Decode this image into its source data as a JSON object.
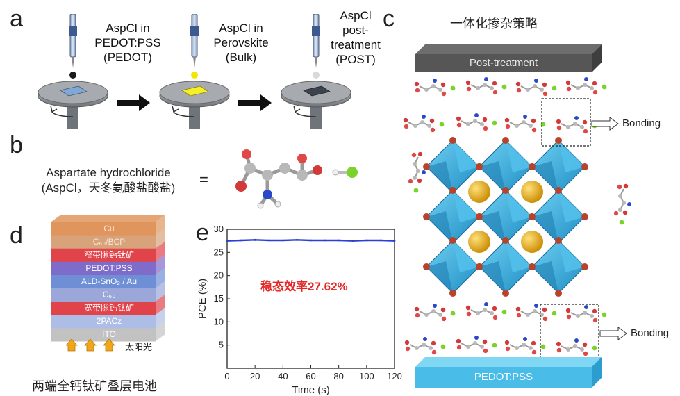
{
  "panels": {
    "a": "a",
    "b": "b",
    "c": "c",
    "d": "d",
    "e": "e"
  },
  "panel_a": {
    "steps": [
      {
        "lines": [
          "AspCl in",
          "PEDOT:PSS",
          "(PEDOT)"
        ],
        "drop_color": "#1a1a1a",
        "film_color": "#7fa8d8"
      },
      {
        "lines": [
          "AspCl in",
          "Perovskite",
          "(Bulk)"
        ],
        "drop_color": "#f2e600",
        "film_color": "#f5ef2a"
      },
      {
        "lines": [
          "AspCl",
          "post-",
          "treatment",
          "(POST)"
        ],
        "drop_color": "#d9d9d9",
        "film_color": "#3c4350"
      }
    ]
  },
  "panel_b": {
    "name_line1": "Aspartate hydrochloride",
    "name_line2": "(AspCl，天冬氨酸盐酸盐)",
    "equals": "="
  },
  "panel_c": {
    "title": "一体化掺杂策略",
    "top_bar": "Post-treatment",
    "bottom_bar": "PEDOT:PSS",
    "bonding_label": "Bonding"
  },
  "panel_d": {
    "layers": [
      {
        "label": "Cu",
        "color": "#e0955d"
      },
      {
        "label": "C₆₀/BCP",
        "color": "#d8a37a"
      },
      {
        "label": "窄带隙钙钛矿",
        "color": "#e1434b"
      },
      {
        "label": "PEDOT:PSS",
        "color": "#7f6bc9"
      },
      {
        "label": "ALD-SnO₂ / Au",
        "color": "#6e8fd6"
      },
      {
        "label": "C₆₀",
        "color": "#9aa7d8"
      },
      {
        "label": "宽带隙钙钛矿",
        "color": "#e1434b"
      },
      {
        "label": "2PACz",
        "color": "#aebde6"
      },
      {
        "label": "ITO",
        "color": "#c2c2c2"
      }
    ],
    "sun_label": "太阳光",
    "caption": "两端全钙钛矿叠层电池"
  },
  "chart_data": {
    "type": "line",
    "xlabel": "Time (s)",
    "ylabel": "PCE (%)",
    "xlim": [
      0,
      120
    ],
    "ylim": [
      0,
      30
    ],
    "xticks": [
      0,
      20,
      40,
      60,
      80,
      100,
      120
    ],
    "yticks": [
      5,
      10,
      15,
      20,
      25,
      30
    ],
    "series": [
      {
        "color": "#2a3fd6",
        "x": [
          0,
          10,
          20,
          30,
          40,
          50,
          60,
          70,
          80,
          90,
          100,
          110,
          120
        ],
        "y": [
          27.5,
          27.6,
          27.7,
          27.6,
          27.6,
          27.7,
          27.6,
          27.6,
          27.6,
          27.5,
          27.6,
          27.6,
          27.5
        ]
      }
    ],
    "annotation": "稳态效率27.62%",
    "annotation_color": "#e32626"
  }
}
